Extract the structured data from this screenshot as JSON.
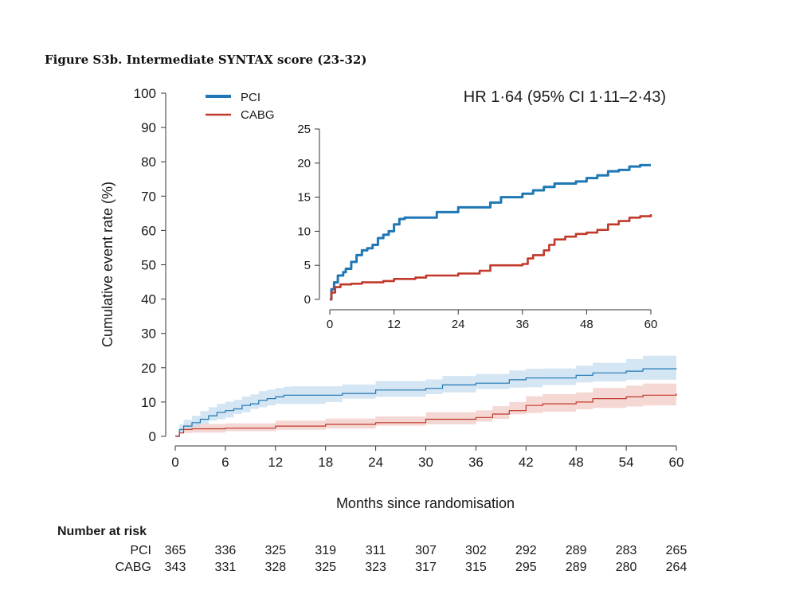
{
  "caption": "Figure S3b. Intermediate SYNTAX score (23-32)",
  "colors": {
    "pci": "#1f77b4",
    "cabg": "#c0392b",
    "pci_band": "#c6dcef",
    "cabg_band": "#f2c9c5"
  },
  "chart_data": [
    {
      "type": "line",
      "name": "main",
      "xlabel": "Months since randomisation",
      "ylabel": "Cumulative event rate (%)",
      "xlim": [
        0,
        60
      ],
      "ylim": [
        0,
        100
      ],
      "xticks": [
        "0",
        "6",
        "12",
        "18",
        "24",
        "30",
        "36",
        "42",
        "48",
        "54",
        "60"
      ],
      "yticks": [
        "0",
        "10",
        "20",
        "30",
        "40",
        "50",
        "60",
        "70",
        "80",
        "90",
        "100"
      ],
      "legend": {
        "position": "top-left",
        "entries": [
          "PCI",
          "CABG"
        ]
      },
      "annotation": "HR 1·64 (95% CI 1·11–2·43)",
      "series": [
        {
          "name": "PCI",
          "x": [
            0,
            0.5,
            1,
            2,
            3,
            4,
            5,
            6,
            7,
            8,
            9,
            10,
            11,
            12,
            13,
            14,
            18,
            20,
            24,
            30,
            32,
            36,
            40,
            42,
            44,
            48,
            50,
            54,
            56,
            60
          ],
          "y": [
            0,
            2,
            3,
            4,
            5,
            6,
            7,
            7.5,
            8,
            9,
            9.5,
            10.5,
            11,
            11.5,
            12,
            12,
            12,
            12.5,
            13.5,
            14,
            15,
            15.5,
            16.5,
            17,
            17,
            17.8,
            18.5,
            19,
            19.7,
            19.8
          ],
          "ci_low": [
            0,
            0.5,
            1.2,
            2,
            2.8,
            3.6,
            4.6,
            5,
            5.5,
            6.5,
            7,
            8,
            8.5,
            9,
            9.5,
            9.5,
            9.5,
            10,
            11,
            11.5,
            12.3,
            12.8,
            13.8,
            14.2,
            14.3,
            15,
            15.7,
            16,
            16.5,
            16.5
          ],
          "ci_high": [
            0,
            3.5,
            4.8,
            6,
            7.4,
            8.5,
            9.5,
            10.1,
            10.6,
            11.6,
            12.2,
            13.2,
            13.6,
            14.1,
            14.5,
            14.6,
            14.6,
            15.1,
            16.1,
            16.6,
            17.6,
            18.2,
            19.2,
            19.7,
            19.8,
            20.6,
            21.4,
            22.5,
            23.5,
            23.5
          ]
        },
        {
          "name": "CABG",
          "x": [
            0,
            0.5,
            1,
            2,
            6,
            12,
            18,
            24,
            30,
            36,
            38,
            40,
            42,
            44,
            48,
            50,
            54,
            56,
            60
          ],
          "y": [
            0,
            1,
            2,
            2.2,
            2.4,
            3,
            3.5,
            4,
            5,
            5.5,
            6.5,
            7.5,
            9,
            9.5,
            10,
            11,
            11.5,
            12,
            12.5
          ],
          "ci_low": [
            0,
            0.2,
            0.8,
            1,
            1.1,
            1.5,
            1.9,
            2.3,
            3.1,
            3.5,
            4.3,
            5.1,
            6.4,
            6.8,
            7.2,
            7.9,
            8.3,
            8.7,
            9
          ],
          "ci_high": [
            0,
            2,
            3.4,
            3.6,
            3.8,
            4.6,
            5.2,
            5.8,
            7,
            7.6,
            8.8,
            10,
            11.7,
            12.3,
            12.8,
            14.1,
            14.8,
            15.4,
            16
          ]
        }
      ]
    },
    {
      "type": "line",
      "name": "inset",
      "xlim": [
        0,
        60
      ],
      "ylim": [
        0,
        25
      ],
      "xticks": [
        "0",
        "12",
        "24",
        "36",
        "48",
        "60"
      ],
      "yticks": [
        "0",
        "5",
        "10",
        "15",
        "20",
        "25"
      ],
      "series": [
        {
          "name": "PCI",
          "x": [
            0,
            0.3,
            0.8,
            1.5,
            2.5,
            3,
            4,
            5,
            6,
            7,
            8,
            9,
            10,
            11,
            12,
            13,
            14,
            18,
            20,
            24,
            26,
            30,
            32,
            36,
            38,
            40,
            42,
            44,
            46,
            48,
            50,
            52,
            54,
            56,
            58,
            60
          ],
          "y": [
            0,
            1.5,
            2.5,
            3.5,
            4,
            4.5,
            5.5,
            6.5,
            7.2,
            7.5,
            8,
            9,
            9.5,
            10,
            11,
            11.8,
            12,
            12,
            12.8,
            13.5,
            13.5,
            14.2,
            15,
            15.5,
            16,
            16.5,
            17,
            17,
            17.3,
            17.8,
            18.2,
            18.8,
            19,
            19.5,
            19.7,
            19.7
          ]
        },
        {
          "name": "CABG",
          "x": [
            0,
            0.3,
            1,
            2,
            4,
            6,
            10,
            12,
            16,
            18,
            24,
            28,
            30,
            36,
            37,
            38,
            40,
            41,
            42,
            44,
            46,
            48,
            50,
            52,
            54,
            56,
            58,
            60
          ],
          "y": [
            0,
            1,
            1.8,
            2.2,
            2.3,
            2.5,
            2.7,
            3,
            3.2,
            3.5,
            3.8,
            4.2,
            5,
            5.2,
            6,
            6.5,
            7.2,
            8,
            8.8,
            9.2,
            9.6,
            9.8,
            10.2,
            11,
            11.5,
            12,
            12.2,
            12.5
          ]
        }
      ]
    }
  ],
  "risk_table": {
    "title": "Number at risk",
    "rows": [
      {
        "label": "PCI",
        "values": [
          "365",
          "336",
          "325",
          "319",
          "311",
          "307",
          "302",
          "292",
          "289",
          "283",
          "265"
        ]
      },
      {
        "label": "CABG",
        "values": [
          "343",
          "331",
          "328",
          "325",
          "323",
          "317",
          "315",
          "295",
          "289",
          "280",
          "264"
        ]
      }
    ]
  }
}
